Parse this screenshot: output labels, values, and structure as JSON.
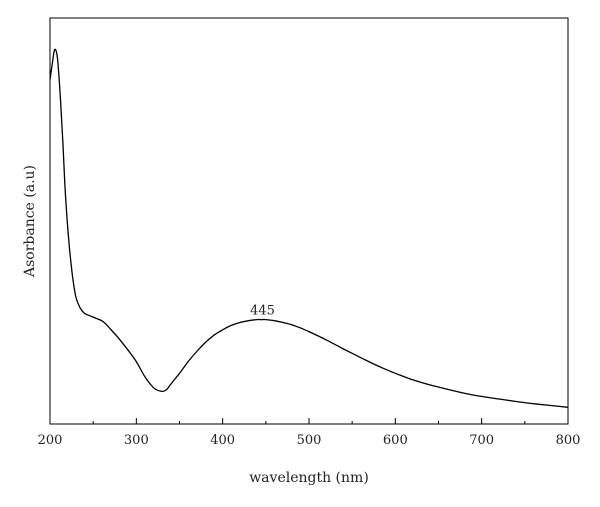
{
  "chart_data": {
    "type": "line",
    "xlabel": "wavelength (nm)",
    "ylabel": "Asorbance (a.u)",
    "xlim": [
      200,
      800
    ],
    "ylim": [
      0,
      1.12
    ],
    "x_ticks": [
      200,
      300,
      400,
      500,
      600,
      700,
      800
    ],
    "y_ticks_labeled": false,
    "grid": false,
    "series": [
      {
        "color": "#000000",
        "x": [
          200,
          203,
          205,
          207,
          209,
          212,
          215,
          218,
          222,
          226,
          230,
          235,
          240,
          245,
          250,
          255,
          260,
          265,
          270,
          280,
          290,
          300,
          310,
          320,
          325,
          330,
          335,
          340,
          350,
          360,
          370,
          380,
          390,
          400,
          410,
          420,
          430,
          440,
          445,
          450,
          460,
          470,
          480,
          490,
          500,
          520,
          540,
          560,
          580,
          600,
          620,
          640,
          660,
          680,
          700,
          720,
          740,
          760,
          780,
          800
        ],
        "y": [
          0.95,
          1.0,
          1.03,
          1.03,
          1.0,
          0.9,
          0.77,
          0.63,
          0.5,
          0.41,
          0.35,
          0.32,
          0.305,
          0.3,
          0.295,
          0.29,
          0.285,
          0.275,
          0.262,
          0.235,
          0.205,
          0.172,
          0.13,
          0.1,
          0.093,
          0.09,
          0.095,
          0.11,
          0.14,
          0.172,
          0.2,
          0.225,
          0.245,
          0.26,
          0.272,
          0.28,
          0.285,
          0.288,
          0.288,
          0.288,
          0.285,
          0.28,
          0.274,
          0.265,
          0.255,
          0.232,
          0.207,
          0.183,
          0.16,
          0.14,
          0.122,
          0.108,
          0.096,
          0.085,
          0.076,
          0.069,
          0.062,
          0.056,
          0.051,
          0.046
        ]
      }
    ],
    "annotations": [
      {
        "text": "445",
        "x": 445,
        "y": 0.288
      }
    ]
  }
}
